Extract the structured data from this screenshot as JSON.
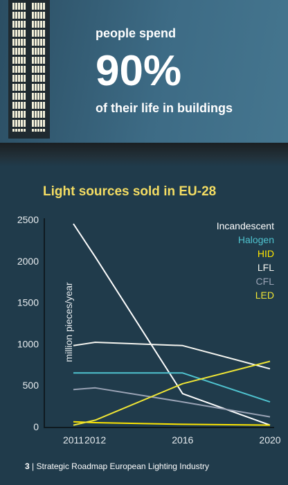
{
  "banner": {
    "line1": "people spend",
    "big": "90%",
    "line3": "of their life in buildings"
  },
  "footer": {
    "page": "3",
    "separator": " | ",
    "text": "Strategic Roadmap European Lighting Industry"
  },
  "chart_data": {
    "type": "line",
    "title": "Light sources sold in EU-28",
    "ylabel": "million pieces/year",
    "xlabel": "",
    "x": [
      2011,
      2012,
      2016,
      2020
    ],
    "x_tick_labels": [
      "2011",
      "2012",
      "2016",
      "2020"
    ],
    "y_ticks": [
      0,
      500,
      1000,
      1500,
      2000,
      2500
    ],
    "ylim": [
      0,
      2500
    ],
    "grid": false,
    "legend_position": "top-right",
    "series": [
      {
        "name": "Incandescent",
        "color": "#ffffff",
        "values": [
          2450,
          2050,
          400,
          20
        ]
      },
      {
        "name": "Halogen",
        "color": "#4fc3cf",
        "values": [
          650,
          650,
          650,
          300
        ]
      },
      {
        "name": "HID",
        "color": "#ffe600",
        "values": [
          60,
          50,
          30,
          20
        ]
      },
      {
        "name": "LFL",
        "color": "#f5f5f0",
        "values": [
          980,
          1020,
          980,
          700
        ]
      },
      {
        "name": "CFL",
        "color": "#9aa3b5",
        "values": [
          450,
          470,
          300,
          120
        ]
      },
      {
        "name": "LED",
        "color": "#f0e635",
        "values": [
          20,
          80,
          520,
          790
        ]
      }
    ]
  }
}
